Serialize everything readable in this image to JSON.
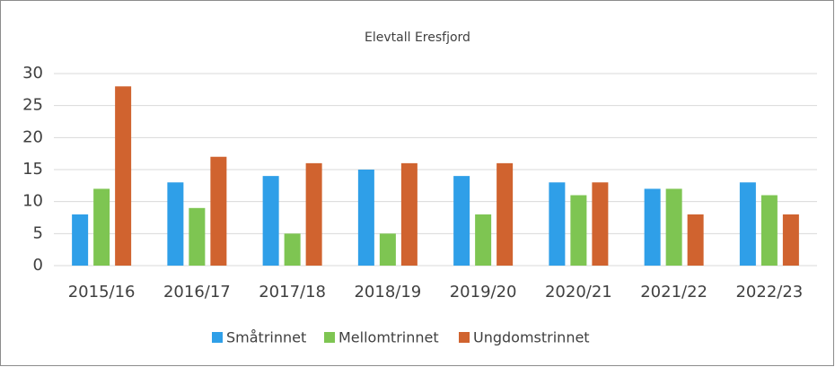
{
  "chart_data": {
    "type": "bar",
    "title": "Elevtall Eresfjord",
    "categories": [
      "2015/16",
      "2016/17",
      "2017/18",
      "2018/19",
      "2019/20",
      "2020/21",
      "2021/22",
      "2022/23"
    ],
    "series": [
      {
        "name": "Småtrinnet",
        "color": "#2f9fe8",
        "values": [
          8,
          13,
          14,
          15,
          14,
          13,
          12,
          13
        ]
      },
      {
        "name": "Mellomtrinnet",
        "color": "#7ec552",
        "values": [
          12,
          9,
          5,
          5,
          8,
          11,
          12,
          11
        ]
      },
      {
        "name": "Ungdomstrinnet",
        "color": "#d0632f",
        "values": [
          28,
          17,
          16,
          16,
          16,
          13,
          8,
          8
        ]
      }
    ],
    "ylim": [
      0,
      30
    ],
    "yticks": [
      0,
      5,
      10,
      15,
      20,
      25,
      30
    ],
    "grid": true,
    "legend": "bottom"
  }
}
